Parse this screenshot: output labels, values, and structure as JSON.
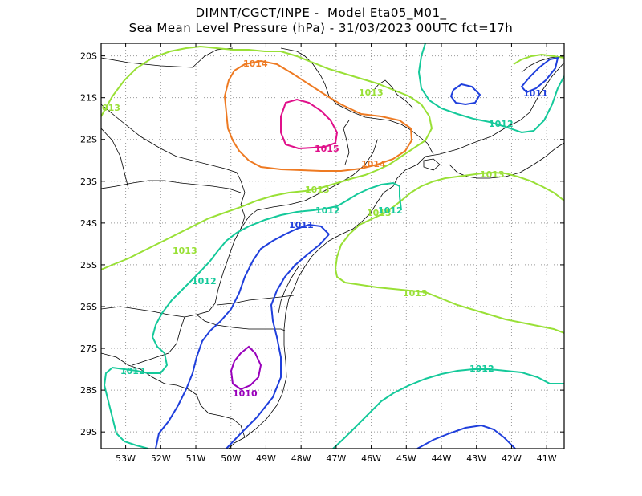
{
  "title": {
    "line1": "DIMNT/CGCT/INPE -  Model Eta05_M01_",
    "line2": "Sea Mean Level Pressure (hPa) - 31/03/2023 00UTC fct=17h"
  },
  "colors": {
    "c1010": "#9900bb",
    "c1011": "#1f3fdc",
    "c1012": "#14c99a",
    "c1013": "#99e036",
    "c1014": "#ee7a22",
    "c1015": "#e0108a",
    "grid": "#999999",
    "borders": "#000000"
  },
  "chart_data": {
    "type": "contour-map",
    "variable": "Sea Mean Level Pressure (hPa)",
    "lon_range": [
      -53.7,
      -40.5
    ],
    "lat_range": [
      -29.4,
      -19.7
    ],
    "x_ticks": [
      "53W",
      "52W",
      "51W",
      "50W",
      "49W",
      "48W",
      "47W",
      "46W",
      "45W",
      "44W",
      "43W",
      "42W",
      "41W"
    ],
    "y_ticks": [
      "20S",
      "21S",
      "22S",
      "23S",
      "24S",
      "25S",
      "26S",
      "27S",
      "28S",
      "29S"
    ],
    "contour_levels": [
      1010,
      1011,
      1012,
      1013,
      1014,
      1015
    ],
    "contour_labels": [
      {
        "text": "1014",
        "level": 1014
      },
      {
        "text": "1014",
        "level": 1014
      },
      {
        "text": "1015",
        "level": 1015
      },
      {
        "text": "1013",
        "level": 1013
      },
      {
        "text": "1013",
        "level": 1013
      },
      {
        "text": "1013",
        "level": 1013
      },
      {
        "text": "1013",
        "level": 1013
      },
      {
        "text": "1013",
        "level": 1013
      },
      {
        "text": "1013",
        "level": 1013
      },
      {
        "text": "013",
        "level": 1013
      },
      {
        "text": "1012",
        "level": 1012
      },
      {
        "text": "1012",
        "level": 1012
      },
      {
        "text": "1012",
        "level": 1012
      },
      {
        "text": "1012",
        "level": 1012
      },
      {
        "text": "1012",
        "level": 1012
      },
      {
        "text": "1012",
        "level": 1012
      },
      {
        "text": "1011",
        "level": 1011
      },
      {
        "text": "1011",
        "level": 1011
      },
      {
        "text": "1010",
        "level": 1010
      }
    ]
  }
}
